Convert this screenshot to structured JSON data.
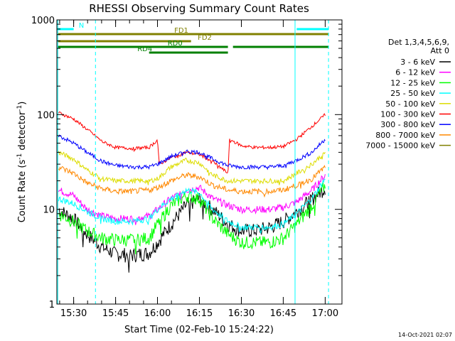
{
  "chart_data": {
    "type": "line",
    "title": "RHESSI Observing Summary Count Rates",
    "xlabel": "Start Time (02-Feb-10 15:24:22)",
    "ylabel_main": "Count Rate (s",
    "ylabel_sup1": "-1",
    "ylabel_mid": " detector",
    "ylabel_sup2": "-1",
    "ylabel_end": ")",
    "yscale": "log",
    "ylim": [
      1,
      1000
    ],
    "xlim_minutes": [
      15.4,
      17.1
    ],
    "xlim": [
      "15:24:22",
      "17:06"
    ],
    "xticks": [
      {
        "t": 15.5,
        "label": "15:30"
      },
      {
        "t": 15.75,
        "label": "15:45"
      },
      {
        "t": 16.0,
        "label": "16:00"
      },
      {
        "t": 16.25,
        "label": "16:15"
      },
      {
        "t": 16.5,
        "label": "16:30"
      },
      {
        "t": 16.75,
        "label": "16:45"
      },
      {
        "t": 17.0,
        "label": "17:00"
      }
    ],
    "yticks": [
      {
        "v": 1,
        "label": "1"
      },
      {
        "v": 10,
        "label": "10"
      },
      {
        "v": 100,
        "label": "100"
      },
      {
        "v": 1000,
        "label": "1000"
      }
    ],
    "legend_header": [
      "Det 1,3,4,5,6,9,",
      "Att 0"
    ],
    "series": [
      {
        "name": "3 - 6 keV",
        "color": "#000000",
        "x": [
          15.41,
          15.5,
          15.58,
          15.67,
          15.75,
          15.85,
          15.95,
          16.0,
          16.08,
          16.17,
          16.25,
          16.33,
          16.42,
          16.5,
          16.58,
          16.67,
          16.75,
          16.83,
          16.92,
          17.0
        ],
        "values": [
          10,
          8,
          5.5,
          4,
          3.4,
          3.3,
          3.5,
          4.5,
          7,
          11,
          13,
          10,
          7,
          6,
          6,
          6.5,
          7.5,
          9.5,
          13,
          17
        ]
      },
      {
        "name": "6 - 12 keV",
        "color": "#ff00ff",
        "x": [
          15.41,
          15.5,
          15.58,
          15.67,
          15.75,
          15.85,
          15.95,
          16.0,
          16.08,
          16.17,
          16.25,
          16.33,
          16.42,
          16.5,
          16.58,
          16.67,
          16.75,
          16.83,
          16.92,
          17.0
        ],
        "values": [
          16,
          14,
          10,
          8.5,
          8,
          8,
          8.5,
          10,
          13,
          16,
          17,
          13,
          11,
          10,
          10,
          10,
          10.5,
          12,
          16,
          23
        ]
      },
      {
        "name": "12 - 25 keV",
        "color": "#00ff00",
        "x": [
          15.41,
          15.5,
          15.58,
          15.67,
          15.75,
          15.85,
          15.95,
          16.0,
          16.08,
          16.17,
          16.25,
          16.33,
          16.42,
          16.5,
          16.58,
          16.67,
          16.75,
          16.83,
          16.92,
          17.0
        ],
        "values": [
          9,
          7.5,
          6,
          5,
          4.8,
          4.8,
          5,
          7,
          11,
          14,
          13,
          8,
          5.5,
          4.5,
          4.5,
          4.5,
          5,
          7,
          11,
          18
        ]
      },
      {
        "name": "25 - 50 keV",
        "color": "#00ffff",
        "x": [
          15.41,
          15.5,
          15.58,
          15.67,
          15.75,
          15.85,
          15.95,
          16.0,
          16.08,
          16.17,
          16.25,
          16.33,
          16.42,
          16.5,
          16.58,
          16.67,
          16.75,
          16.83,
          16.92,
          17.0
        ],
        "values": [
          13,
          11.5,
          9.5,
          8,
          7.5,
          7.5,
          8,
          10,
          13,
          16,
          15,
          10,
          7.5,
          6.5,
          6.5,
          6.5,
          7,
          9,
          13,
          21
        ]
      },
      {
        "name": "50 - 100 keV",
        "color": "#dddd00",
        "x": [
          15.41,
          15.5,
          15.58,
          15.67,
          15.75,
          15.85,
          15.95,
          16.0,
          16.08,
          16.17,
          16.25,
          16.33,
          16.42,
          16.5,
          16.58,
          16.67,
          16.75,
          16.83,
          16.92,
          17.0
        ],
        "values": [
          40,
          34,
          26,
          21,
          20,
          20,
          20,
          21,
          28,
          33,
          31,
          23,
          20,
          20,
          20,
          20,
          20,
          24,
          30,
          40
        ]
      },
      {
        "name": "100 - 300 keV",
        "color": "#ff0000",
        "x": [
          15.41,
          15.5,
          15.58,
          15.67,
          15.75,
          15.85,
          15.95,
          16.0,
          16.01,
          16.08,
          16.17,
          16.25,
          16.33,
          16.42,
          16.43,
          16.5,
          16.58,
          16.67,
          16.75,
          16.83,
          16.92,
          17.0
        ],
        "values": [
          105,
          90,
          70,
          52,
          45,
          44,
          45,
          54,
          30,
          35,
          40,
          38,
          32,
          24,
          55,
          47,
          45,
          45,
          46,
          55,
          75,
          100
        ]
      },
      {
        "name": "300 - 800 keV",
        "color": "#0000ff",
        "x": [
          15.41,
          15.5,
          15.58,
          15.67,
          15.75,
          15.85,
          15.95,
          16.0,
          16.08,
          16.17,
          16.25,
          16.33,
          16.42,
          16.5,
          16.58,
          16.67,
          16.75,
          16.83,
          16.92,
          17.0
        ],
        "values": [
          60,
          50,
          40,
          32,
          29,
          28,
          28,
          30,
          36,
          41,
          40,
          34,
          29,
          28,
          28,
          28,
          29,
          33,
          40,
          55
        ]
      },
      {
        "name": "800 - 7000 keV",
        "color": "#ff8800",
        "x": [
          15.41,
          15.5,
          15.58,
          15.67,
          15.75,
          15.85,
          15.95,
          16.0,
          16.08,
          16.17,
          16.25,
          16.33,
          16.42,
          16.5,
          16.58,
          16.67,
          16.75,
          16.83,
          16.92,
          17.0
        ],
        "values": [
          28,
          24,
          19,
          16.5,
          15.5,
          15.5,
          16,
          17,
          20,
          23,
          22,
          18,
          16,
          15.5,
          15.5,
          15.5,
          16,
          18,
          21,
          28
        ]
      },
      {
        "name": "7000 - 15000 keV",
        "color": "#808000",
        "x": [],
        "values": []
      }
    ],
    "bars": [
      {
        "label": "N",
        "color": "#00ffff",
        "segments": [
          [
            15.405,
            15.5
          ],
          [
            16.83,
            17.02
          ]
        ],
        "level": 1,
        "label_at": 15.53
      },
      {
        "label": "FD1",
        "color": "#808000",
        "segments": [
          [
            15.405,
            17.02
          ]
        ],
        "level": 2,
        "label_at": 16.1
      },
      {
        "label": "FD2",
        "color": "#808000",
        "segments": [
          [
            15.405,
            16.2
          ]
        ],
        "level": 3,
        "label_at": 16.24
      },
      {
        "label": "RD0",
        "color": "#008000",
        "segments": [
          [
            15.405,
            16.42
          ],
          [
            16.45,
            17.02
          ]
        ],
        "level": 4,
        "label_at": 16.06
      },
      {
        "label": "RD4",
        "color": "#008000",
        "segments": [
          [
            15.95,
            16.42
          ]
        ],
        "level": 5,
        "label_at": 15.88
      }
    ],
    "vlines": [
      {
        "t": 15.405,
        "style": "solid",
        "color": "#00ffff"
      },
      {
        "t": 15.63,
        "style": "dashed",
        "color": "#00ffff"
      },
      {
        "t": 16.82,
        "style": "solid",
        "color": "#00ffff"
      },
      {
        "t": 17.02,
        "style": "dashed",
        "color": "#00ffff"
      }
    ],
    "grid": false,
    "legend_position": "right"
  },
  "footer_date": "14-Oct-2021 02:07"
}
